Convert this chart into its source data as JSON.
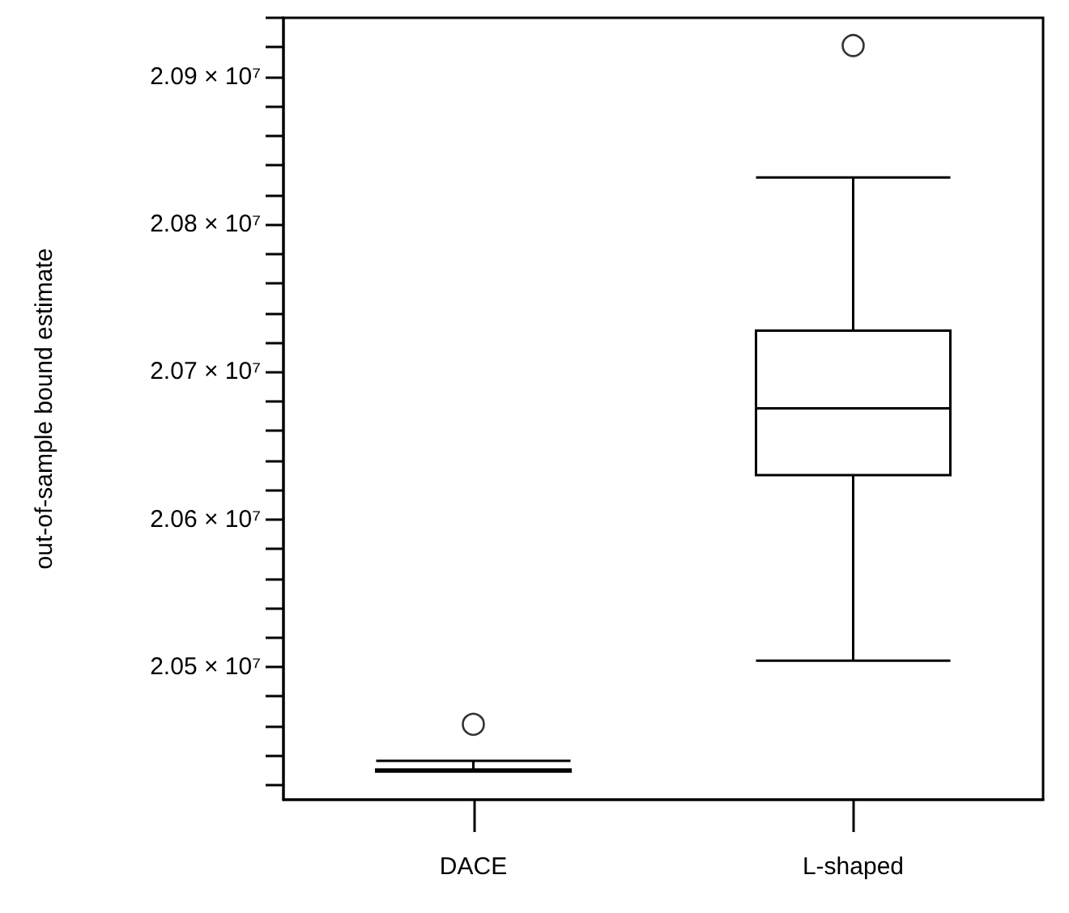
{
  "chart_data": {
    "type": "box",
    "ylabel": "out-of-sample bound estimate",
    "categories": [
      "DACE",
      "L-shaped"
    ],
    "boxes": [
      {
        "low": 20429000,
        "q1": 20429000,
        "median": 20429700,
        "q3": 20430500,
        "high": 20436400,
        "outliers": [
          20461100
        ]
      },
      {
        "low": 20504200,
        "q1": 20630000,
        "median": 20675300,
        "q3": 20727900,
        "high": 20831800,
        "outliers": [
          20921200
        ]
      }
    ],
    "color": "#000000",
    "ylim": [
      20410000,
      20940000
    ],
    "yticks": [
      {
        "value": 20420000,
        "label": null
      },
      {
        "value": 20440000,
        "label": null
      },
      {
        "value": 20460000,
        "label": null
      },
      {
        "value": 20480000,
        "label": null
      },
      {
        "value": 20500000,
        "label": "2.05 × 10⁷"
      },
      {
        "value": 20520000,
        "label": null
      },
      {
        "value": 20540000,
        "label": null
      },
      {
        "value": 20560000,
        "label": null
      },
      {
        "value": 20580000,
        "label": null
      },
      {
        "value": 20600000,
        "label": "2.06 × 10⁷"
      },
      {
        "value": 20620000,
        "label": null
      },
      {
        "value": 20640000,
        "label": null
      },
      {
        "value": 20660000,
        "label": null
      },
      {
        "value": 20680000,
        "label": null
      },
      {
        "value": 20700000,
        "label": "2.07 × 10⁷"
      },
      {
        "value": 20720000,
        "label": null
      },
      {
        "value": 20740000,
        "label": null
      },
      {
        "value": 20760000,
        "label": null
      },
      {
        "value": 20780000,
        "label": null
      },
      {
        "value": 20800000,
        "label": "2.08 × 10⁷"
      },
      {
        "value": 20820000,
        "label": null
      },
      {
        "value": 20840000,
        "label": null
      },
      {
        "value": 20860000,
        "label": null
      },
      {
        "value": 20880000,
        "label": null
      },
      {
        "value": 20900000,
        "label": "2.09 × 10⁷"
      },
      {
        "value": 20920000,
        "label": null
      },
      {
        "value": 20940000,
        "label": null
      }
    ],
    "grid": false,
    "marker": "circle"
  }
}
